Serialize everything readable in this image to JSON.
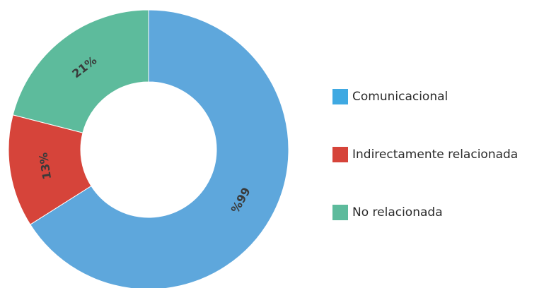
{
  "chart_data": {
    "type": "pie",
    "donut": true,
    "title": "",
    "categories": [
      "Comunicacional",
      "Indirectamente relacionada",
      "No relacionada"
    ],
    "values": [
      66,
      13,
      21
    ],
    "value_labels": [
      "66%",
      "13%",
      "21%"
    ],
    "colors": [
      "#5ea7dc",
      "#d6443a",
      "#5dbb9c"
    ],
    "legend_swatch_colors": [
      "#3fa9e2",
      "#d6443a",
      "#5dbb9c"
    ],
    "legend_position": "right"
  }
}
